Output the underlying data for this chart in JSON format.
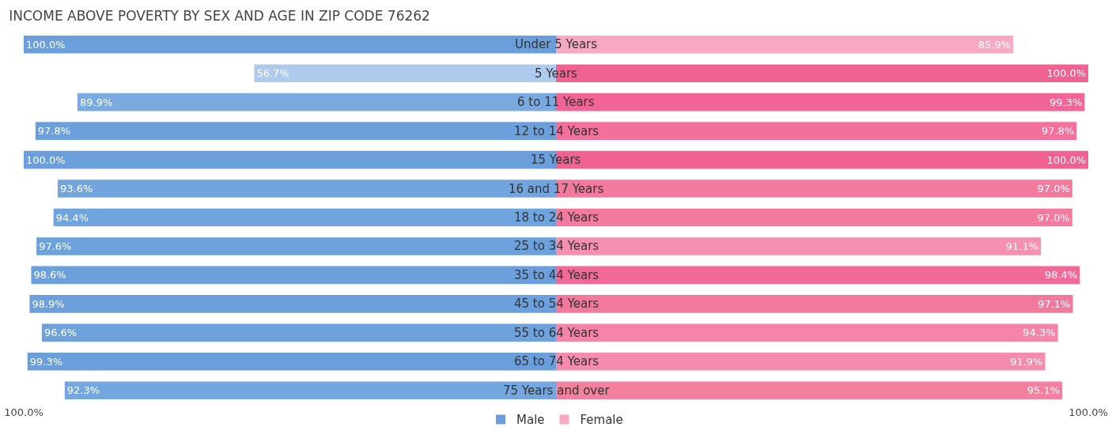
{
  "chart_data": {
    "type": "bar",
    "orientation": "horizontal",
    "title": "INCOME ABOVE POVERTY BY SEX AND AGE IN ZIP CODE 76262",
    "categories": [
      "Under 5 Years",
      "5 Years",
      "6 to 11 Years",
      "12 to 14 Years",
      "15 Years",
      "16 and 17 Years",
      "18 to 24 Years",
      "25 to 34 Years",
      "35 to 44 Years",
      "45 to 54 Years",
      "55 to 64 Years",
      "65 to 74 Years",
      "75 Years and over"
    ],
    "series": [
      {
        "name": "Male",
        "colors": [
          "#6a9fdc",
          "#aecbee",
          "#7aaae0",
          "#6ca0dc",
          "#6a9fdc",
          "#72a5de",
          "#70a4de",
          "#6ca1dc",
          "#6ba0dc",
          "#6ba0dc",
          "#6ea2dd",
          "#6a9fdc",
          "#74a6df"
        ],
        "values": [
          100.0,
          56.7,
          89.9,
          97.8,
          100.0,
          93.6,
          94.4,
          97.6,
          98.6,
          98.9,
          96.6,
          99.3,
          92.3
        ],
        "base": [
          -100.0,
          -56.7,
          -89.9,
          -97.8,
          -100.0,
          -93.6,
          -94.4,
          -97.6,
          -98.6,
          -98.9,
          -96.6,
          -99.3,
          -92.3
        ],
        "value_labels": [
          "100.0%",
          "56.7%",
          "89.9%",
          "97.8%",
          "100.0%",
          "93.6%",
          "94.4%",
          "97.6%",
          "98.6%",
          "98.9%",
          "96.6%",
          "99.3%",
          "92.3%"
        ]
      },
      {
        "name": "Female",
        "colors": [
          "#f7a8c2",
          "#f06292",
          "#f06596",
          "#f27099",
          "#f06292",
          "#f27a9f",
          "#f27a9f",
          "#f590b0",
          "#f16a97",
          "#f2799e",
          "#f485a8",
          "#f48cad",
          "#f3809f"
        ],
        "values": [
          85.9,
          100.0,
          99.3,
          97.8,
          100.0,
          97.0,
          97.0,
          91.1,
          98.4,
          97.1,
          94.3,
          91.9,
          95.1
        ],
        "value_labels": [
          "85.9%",
          "100.0%",
          "99.3%",
          "97.8%",
          "100.0%",
          "97.0%",
          "97.0%",
          "91.1%",
          "98.4%",
          "97.1%",
          "94.3%",
          "91.9%",
          "95.1%"
        ]
      }
    ],
    "xlim": [
      -100,
      100
    ],
    "xticks": [
      {
        "value": -100,
        "label": "100.0%"
      },
      {
        "value": 100,
        "label": "100.0%"
      }
    ],
    "legend": "bottom"
  }
}
